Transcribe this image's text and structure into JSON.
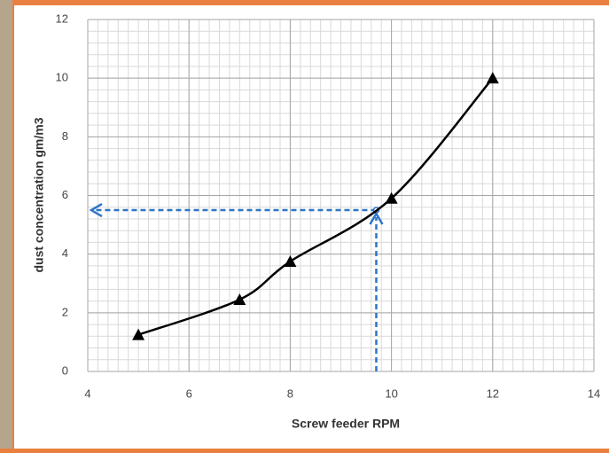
{
  "chart_data": {
    "type": "line",
    "x_label": "Screw feeder RPM",
    "y_label": "dust concentration gm/m3",
    "x": [
      5,
      7,
      8,
      10,
      12
    ],
    "series": [
      {
        "color": "#000000",
        "values": [
          1.25,
          2.45,
          3.75,
          5.9,
          10
        ]
      }
    ],
    "xlim": [
      4,
      14
    ],
    "xticks": [
      4,
      6,
      8,
      10,
      12,
      14
    ],
    "ylim": [
      0,
      12
    ],
    "yticks": [
      0,
      2,
      4,
      6,
      8,
      10,
      12
    ],
    "grid": true,
    "minor_grid": {
      "x": 0.2,
      "y": 0.4
    },
    "reference": {
      "x": 9.7,
      "y": 5.5,
      "color": "#2e75c8"
    }
  }
}
